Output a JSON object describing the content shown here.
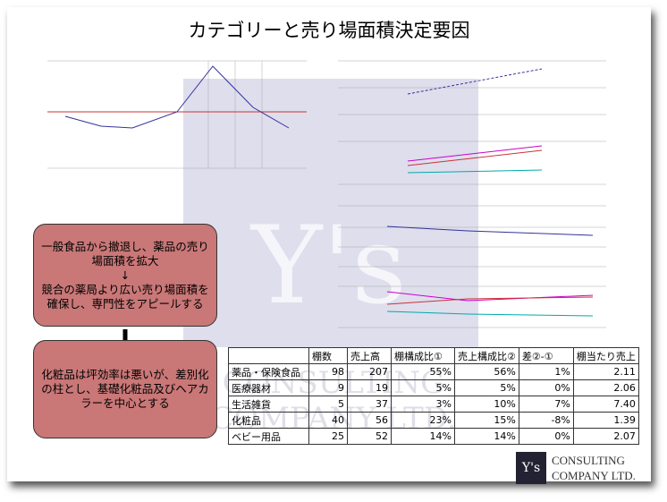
{
  "title": "カテゴリーと売り場面積決定要因",
  "boxes": [
    {
      "lines": [
        "一般食品から撤退し、薬品の売り場面積を拡大",
        "↓",
        "競合の薬局より広い売り場面積を確保し、専門性をアピールする"
      ]
    },
    {
      "lines": [
        "化粧品は坪効率は悪いが、差別化の柱とし、基礎化粧品及びヘアカラーを中心とする"
      ]
    }
  ],
  "table": {
    "header": [
      "",
      "棚数",
      "売上高",
      "棚構成比①",
      "売上構成比②",
      "差②-①",
      "棚当たり売上"
    ],
    "rows": [
      [
        "薬品・保険食品",
        "98",
        "207",
        "55%",
        "56%",
        "1%",
        "2.11"
      ],
      [
        "医療器材",
        "9",
        "19",
        "5%",
        "5%",
        "0%",
        "2.06"
      ],
      [
        "生活雑貨",
        "5",
        "37",
        "3%",
        "10%",
        "7%",
        "7.40"
      ],
      [
        "化粧品",
        "40",
        "56",
        "23%",
        "15%",
        "-8%",
        "1.39"
      ],
      [
        "ベビー用品",
        "25",
        "52",
        "14%",
        "14%",
        "0%",
        "2.07"
      ]
    ]
  },
  "watermark": {
    "mark": "Y's",
    "line1": "CONSULTING",
    "line2": "COMPANY LTD."
  },
  "logo": {
    "mark": "Y's",
    "line1": "CONSULTING",
    "line2": "COMPANY LTD."
  }
}
